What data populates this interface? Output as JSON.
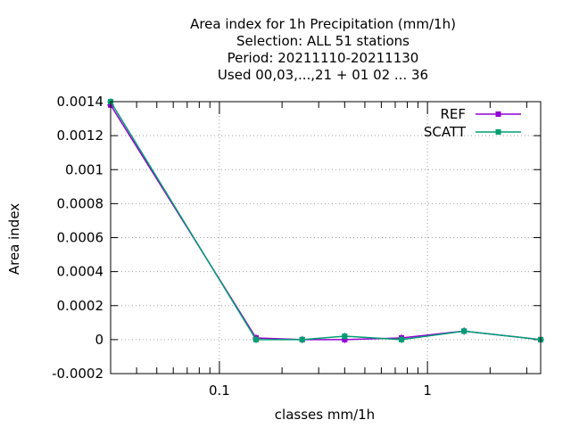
{
  "chart_data": {
    "type": "line",
    "title_lines": [
      "Area index  for 1h Precipitation (mm/1h)",
      "Selection: ALL     51 stations",
      "Period: 20211110-20211130",
      "Used  00,03,...,21  + 01 02 ... 36"
    ],
    "xlabel": "classes mm/1h",
    "ylabel": "Area index",
    "x_scale": "log",
    "xlim": [
      0.03,
      3.5
    ],
    "ylim": [
      -0.0002,
      0.0014
    ],
    "x_ticks": [
      {
        "value": 0.1,
        "label": "0.1"
      },
      {
        "value": 1,
        "label": "1"
      }
    ],
    "y_ticks": [
      {
        "value": -0.0002,
        "label": "-0.0002"
      },
      {
        "value": 0,
        "label": "0"
      },
      {
        "value": 0.0002,
        "label": "0.0002"
      },
      {
        "value": 0.0004,
        "label": "0.0004"
      },
      {
        "value": 0.0006,
        "label": "0.0006"
      },
      {
        "value": 0.0008,
        "label": "0.0008"
      },
      {
        "value": 0.001,
        "label": "0.001"
      },
      {
        "value": 0.0012,
        "label": "0.0012"
      },
      {
        "value": 0.0014,
        "label": "0.0014"
      }
    ],
    "grid": true,
    "legend_position": "top-right",
    "series": [
      {
        "name": "REF",
        "color": "#9400d3",
        "x": [
          0.03,
          0.15,
          0.25,
          0.4,
          0.75,
          1.5,
          3.5
        ],
        "y": [
          0.00138,
          1e-05,
          0.0,
          0.0,
          1e-05,
          5e-05,
          0.0
        ]
      },
      {
        "name": "SCATT",
        "color": "#009e73",
        "x": [
          0.03,
          0.15,
          0.25,
          0.4,
          0.75,
          1.5,
          3.5
        ],
        "y": [
          0.0014,
          0.0,
          0.0,
          2e-05,
          0.0,
          5e-05,
          0.0
        ]
      }
    ]
  }
}
